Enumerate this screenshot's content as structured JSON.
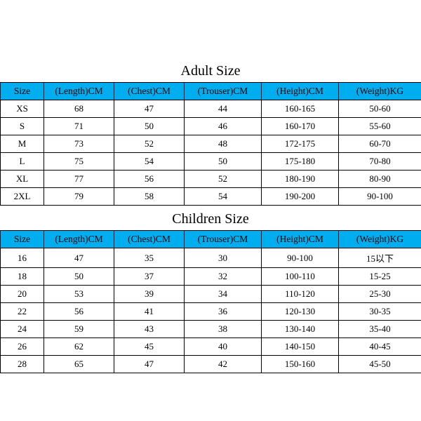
{
  "colors": {
    "header_bg": "#00aeef",
    "border": "#000000",
    "text": "#000000",
    "background": "#ffffff"
  },
  "headers": {
    "size": "Size",
    "length": "(Length)CM",
    "chest": "(Chest)CM",
    "trouser": "(Trouser)CM",
    "height": "(Height)CM",
    "weight": "(Weight)KG"
  },
  "adult": {
    "title": "Adult Size",
    "rows": [
      {
        "size": "XS",
        "length": "68",
        "chest": "47",
        "trouser": "44",
        "height": "160-165",
        "weight": "50-60"
      },
      {
        "size": "S",
        "length": "71",
        "chest": "50",
        "trouser": "46",
        "height": "160-170",
        "weight": "55-60"
      },
      {
        "size": "M",
        "length": "73",
        "chest": "52",
        "trouser": "48",
        "height": "172-175",
        "weight": "60-70"
      },
      {
        "size": "L",
        "length": "75",
        "chest": "54",
        "trouser": "50",
        "height": "175-180",
        "weight": "70-80"
      },
      {
        "size": "XL",
        "length": "77",
        "chest": "56",
        "trouser": "52",
        "height": "180-190",
        "weight": "80-90"
      },
      {
        "size": "2XL",
        "length": "79",
        "chest": "58",
        "trouser": "54",
        "height": "190-200",
        "weight": "90-100"
      }
    ]
  },
  "children": {
    "title": "Children Size",
    "rows": [
      {
        "size": "16",
        "length": "47",
        "chest": "35",
        "trouser": "30",
        "height": "90-100",
        "weight": "15以下"
      },
      {
        "size": "18",
        "length": "50",
        "chest": "37",
        "trouser": "32",
        "height": "100-110",
        "weight": "15-25"
      },
      {
        "size": "20",
        "length": "53",
        "chest": "39",
        "trouser": "34",
        "height": "110-120",
        "weight": "25-30"
      },
      {
        "size": "22",
        "length": "56",
        "chest": "41",
        "trouser": "36",
        "height": "120-130",
        "weight": "30-35"
      },
      {
        "size": "24",
        "length": "59",
        "chest": "43",
        "trouser": "38",
        "height": "130-140",
        "weight": "35-40"
      },
      {
        "size": "26",
        "length": "62",
        "chest": "45",
        "trouser": "40",
        "height": "140-150",
        "weight": "40-45"
      },
      {
        "size": "28",
        "length": "65",
        "chest": "47",
        "trouser": "42",
        "height": "150-160",
        "weight": "45-50"
      }
    ]
  }
}
